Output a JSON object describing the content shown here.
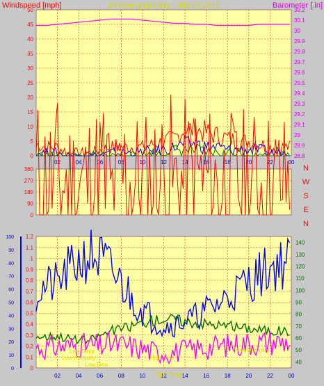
{
  "header": {
    "left": "Windspeed [mph]",
    "center": "24 hour graph day : July 03 2015",
    "right": "Barometer [.in]"
  },
  "colors": {
    "bg": "#c8c8c8",
    "plot_bg": "#ffffa6",
    "grid": "#e03030",
    "wind": "#ff0000",
    "gust": "#0000ff",
    "wind_green": "#008000",
    "barometer": "#ff00ff",
    "humidity": "#0000ff",
    "temperature": "#007000",
    "dewpoint": "#ff00ff",
    "rain_axis": "#0000ff",
    "header_title": "#d8d800",
    "annotation": "#d8d800"
  },
  "wind_dir_labels": [
    "N",
    "W",
    "S",
    "E",
    "N"
  ],
  "chart_data": [
    {
      "id": "wind_baro",
      "type": "line",
      "x": [
        1,
        2,
        3,
        4,
        5,
        6,
        7,
        8,
        9,
        10,
        11,
        12,
        13,
        14,
        15,
        16,
        17,
        18,
        19,
        20,
        21,
        22,
        23,
        24
      ],
      "xticks": [
        "02",
        "04",
        "06",
        "08",
        "10",
        "12",
        "14",
        "16",
        "18",
        "20",
        "22",
        "00"
      ],
      "ylim_left": [
        0,
        50
      ],
      "yticks_left": [
        "0",
        "5",
        "10",
        "15",
        "20",
        "25",
        "30",
        "35",
        "40",
        "45",
        "50"
      ],
      "ylim_right": [
        28.8,
        30.2
      ],
      "yticks_right": [
        "28.8",
        "28.9",
        "29",
        "29.1",
        "29.2",
        "29.3",
        "29.4",
        "29.5",
        "29.6",
        "29.7",
        "29.8",
        "29.9",
        "30",
        "30.1",
        "30.2"
      ],
      "series": [
        {
          "axis": "left",
          "values": [
            4,
            3,
            3,
            1,
            1,
            1,
            2,
            3,
            3,
            3,
            3,
            4,
            5,
            6,
            9,
            9,
            8,
            7,
            6,
            5,
            5,
            4,
            3,
            3
          ]
        },
        {
          "axis": "left",
          "values": [
            1,
            1,
            1,
            0,
            0,
            0,
            0,
            1,
            1,
            1,
            1,
            2,
            2,
            3,
            4,
            4,
            3,
            3,
            2,
            2,
            2,
            2,
            1,
            1
          ]
        },
        {
          "axis": "left",
          "values": [
            0,
            0,
            0,
            0,
            0,
            0,
            0,
            0,
            0,
            0,
            0,
            1,
            1,
            2,
            2,
            2,
            1,
            1,
            1,
            1,
            0,
            0,
            0,
            0
          ]
        },
        {
          "axis": "right",
          "values": [
            30.05,
            30.05,
            30.06,
            30.07,
            30.08,
            30.09,
            30.1,
            30.11,
            30.11,
            30.11,
            30.1,
            30.09,
            30.08,
            30.07,
            30.07,
            30.06,
            30.06,
            30.05,
            30.05,
            30.05,
            30.05,
            30.06,
            30.06,
            30.06
          ]
        }
      ]
    },
    {
      "id": "wind_dir",
      "type": "line",
      "x": [
        1,
        2,
        3,
        4,
        5,
        6,
        7,
        8,
        9,
        10,
        11,
        12,
        13,
        14,
        15,
        16,
        17,
        18,
        19,
        20,
        21,
        22,
        23,
        24
      ],
      "ylim": [
        0,
        360
      ],
      "yticks": [
        "0",
        "90",
        "180",
        "270",
        "360"
      ],
      "values": [
        270,
        255,
        265,
        240,
        240,
        250,
        300,
        180,
        290,
        250,
        240,
        250,
        290,
        230,
        260,
        270,
        250,
        240,
        235,
        240,
        240,
        245,
        235,
        240
      ]
    },
    {
      "id": "rain_hum_temp",
      "type": "line",
      "x": [
        1,
        2,
        3,
        4,
        5,
        6,
        7,
        8,
        9,
        10,
        11,
        12,
        13,
        14,
        15,
        16,
        17,
        18,
        19,
        20,
        21,
        22,
        23,
        24
      ],
      "xticks": [
        "02",
        "04",
        "06",
        "08",
        "10",
        "12",
        "14",
        "16",
        "18",
        "20",
        "22",
        "00"
      ],
      "ylim_rain": [
        0,
        1.2
      ],
      "yticks_rain": [
        "0",
        "0.1",
        "0.2",
        "0.3",
        "0.4",
        "0.5",
        "0.6",
        "0.7",
        "0.8",
        "0.9",
        "1",
        "1.1",
        "1.2"
      ],
      "ylim_humidity": [
        0,
        100
      ],
      "yticks_humidity": [
        "0",
        "10",
        "20",
        "30",
        "40",
        "50",
        "60",
        "70",
        "80",
        "90",
        "100"
      ],
      "ylim_temp": [
        35,
        145
      ],
      "yticks_temp": [
        "40",
        "50",
        "60",
        "70",
        "80",
        "90",
        "100",
        "110",
        "120",
        "130",
        "140"
      ],
      "annotations": [
        "Low Temp",
        "Low Humidity",
        "Low Dew",
        "High Dew",
        "High Temp",
        "High Humidity"
      ],
      "series": [
        {
          "axis": "humidity",
          "values": [
            57,
            62,
            64,
            73,
            80,
            86,
            83,
            74,
            64,
            53,
            44,
            37,
            32,
            33,
            36,
            39,
            44,
            48,
            54,
            60,
            66,
            71,
            76,
            80
          ]
        },
        {
          "axis": "temp",
          "values": [
            62,
            61,
            62,
            60,
            58,
            58,
            62,
            66,
            68,
            70,
            73,
            75,
            76,
            76,
            74,
            73,
            72,
            71,
            70,
            69,
            68,
            67,
            66,
            66
          ]
        },
        {
          "axis": "temp",
          "values": [
            52,
            52,
            53,
            53,
            54,
            54,
            53,
            55,
            54,
            53,
            51,
            49,
            48,
            48,
            50,
            51,
            52,
            53,
            54,
            55,
            56,
            56,
            57,
            57
          ]
        }
      ]
    }
  ]
}
